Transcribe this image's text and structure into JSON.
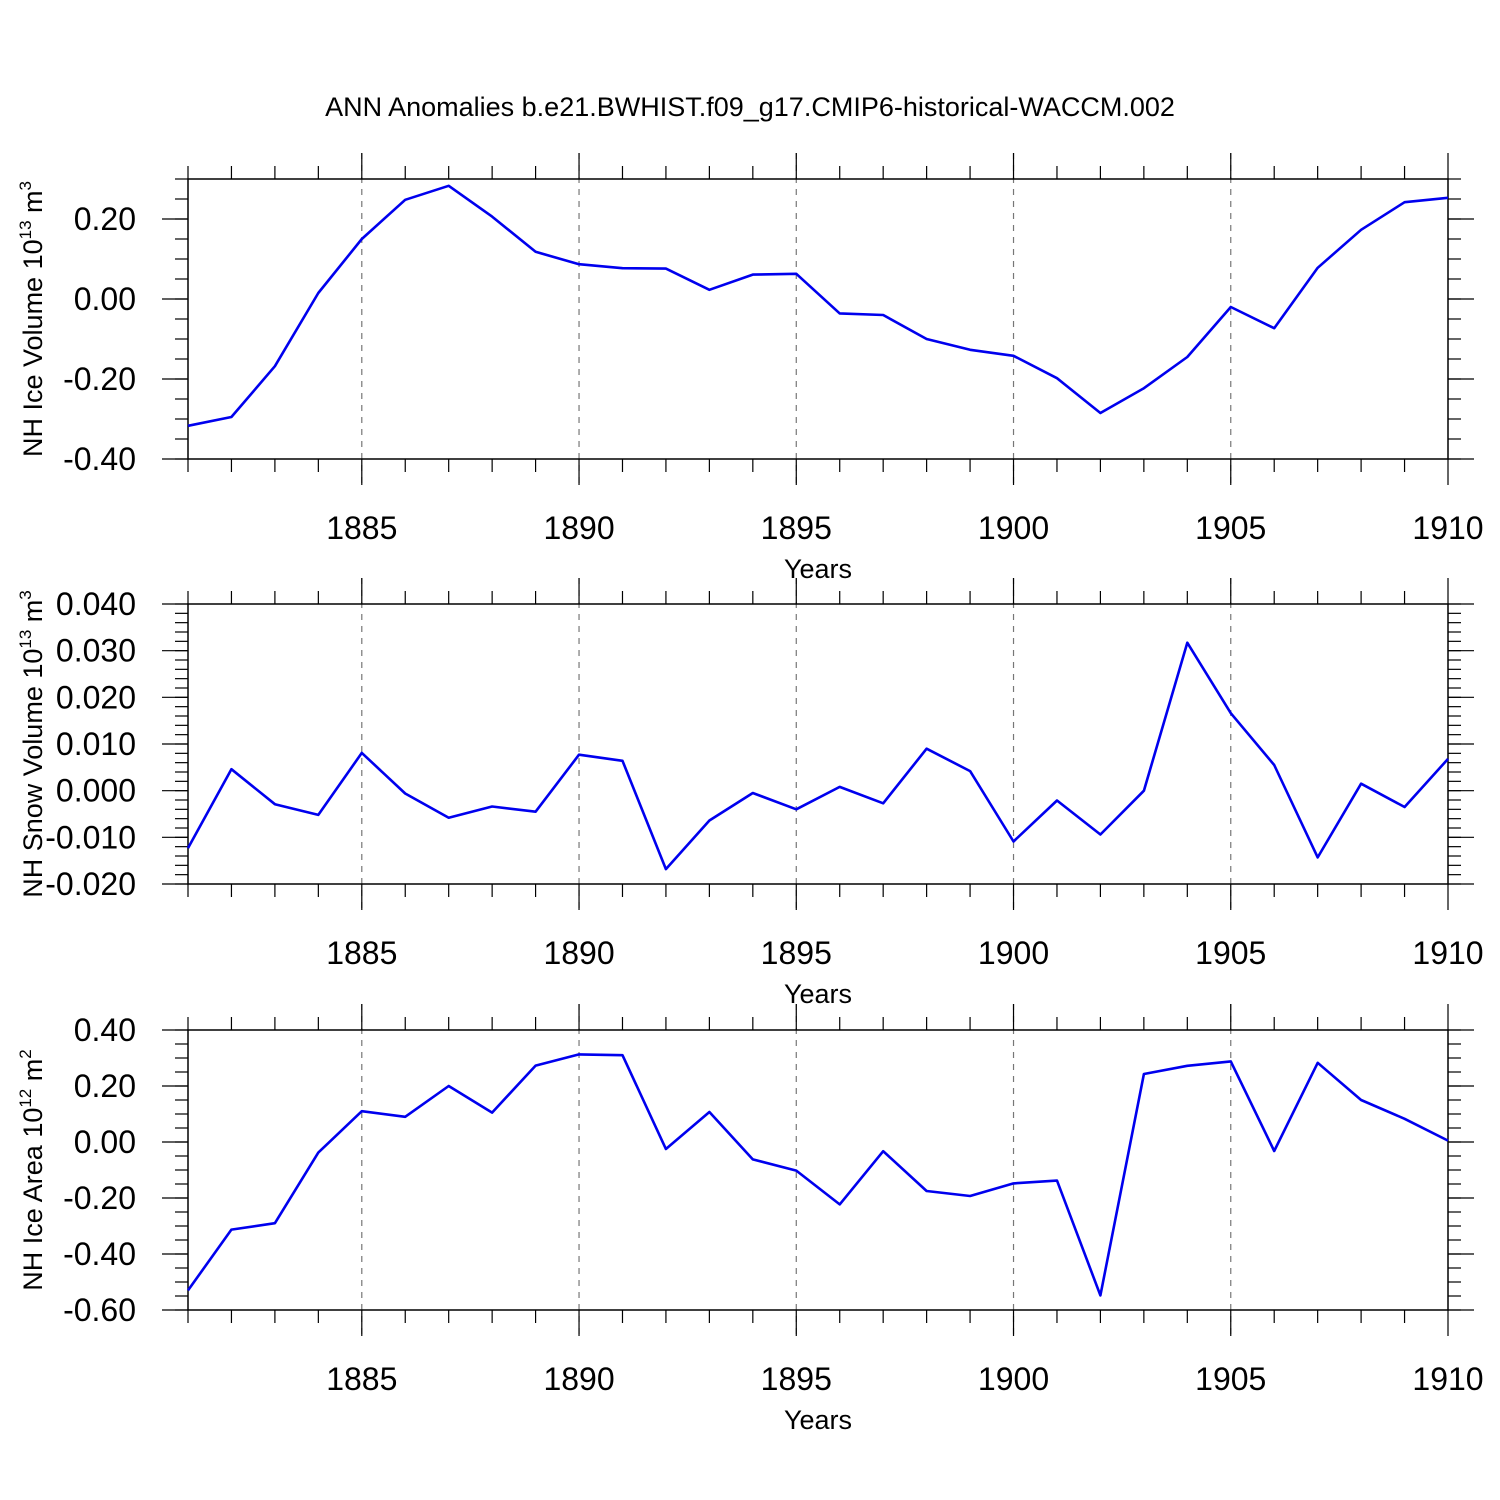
{
  "figure": {
    "title": "ANN Anomalies b.e21.BWHIST.f09_g17.CMIP6-historical-WACCM.002"
  },
  "chart_data": [
    {
      "type": "line",
      "ylabel": {
        "text": "NH Ice Volume 10",
        "exp": "13",
        "unit": " m",
        "unit_exp": "3"
      },
      "xlabel": "Years",
      "xlim": [
        1881,
        1910
      ],
      "ylim": [
        -0.4,
        0.3
      ],
      "xticks": [
        "1885",
        "1890",
        "1895",
        "1900",
        "1905",
        "1910"
      ],
      "yticks": [
        "0.20",
        "0.00",
        "-0.20",
        "-0.40"
      ],
      "ytick_values": [
        0.2,
        0.0,
        -0.2,
        -0.4
      ],
      "yminor_step": 0.05,
      "vgrid": [
        1885,
        1890,
        1895,
        1900,
        1905
      ],
      "series": [
        {
          "color": "#0000ee",
          "x": [
            1881,
            1882,
            1883,
            1884,
            1885,
            1886,
            1887,
            1888,
            1889,
            1890,
            1891,
            1892,
            1893,
            1894,
            1895,
            1896,
            1897,
            1898,
            1899,
            1900,
            1901,
            1902,
            1903,
            1904,
            1905,
            1906,
            1907,
            1908,
            1909,
            1910
          ],
          "y": [
            -0.317,
            -0.295,
            -0.168,
            0.015,
            0.15,
            0.248,
            0.283,
            0.206,
            0.118,
            0.087,
            0.077,
            0.076,
            0.023,
            0.061,
            0.063,
            -0.036,
            -0.04,
            -0.1,
            -0.127,
            -0.142,
            -0.198,
            -0.285,
            -0.223,
            -0.145,
            -0.02,
            -0.073,
            0.078,
            0.173,
            0.242,
            0.253
          ]
        }
      ]
    },
    {
      "type": "line",
      "ylabel": {
        "text": "NH Snow Volume 10",
        "exp": "13",
        "unit": " m",
        "unit_exp": "3"
      },
      "xlabel": "Years",
      "xlim": [
        1881,
        1910
      ],
      "ylim": [
        -0.02,
        0.04
      ],
      "xticks": [
        "1885",
        "1890",
        "1895",
        "1900",
        "1905",
        "1910"
      ],
      "yticks": [
        "0.040",
        "0.030",
        "0.020",
        "0.010",
        "0.000",
        "-0.010",
        "-0.020"
      ],
      "ytick_values": [
        0.04,
        0.03,
        0.02,
        0.01,
        0.0,
        -0.01,
        -0.02
      ],
      "yminor_step": 0.002,
      "vgrid": [
        1885,
        1890,
        1895,
        1900,
        1905
      ],
      "series": [
        {
          "color": "#0000ee",
          "x": [
            1881,
            1882,
            1883,
            1884,
            1885,
            1886,
            1887,
            1888,
            1889,
            1890,
            1891,
            1892,
            1893,
            1894,
            1895,
            1896,
            1897,
            1898,
            1899,
            1900,
            1901,
            1902,
            1903,
            1904,
            1905,
            1906,
            1907,
            1908,
            1909,
            1910
          ],
          "y": [
            -0.0123,
            0.0046,
            -0.0029,
            -0.0052,
            0.0081,
            -0.0006,
            -0.0058,
            -0.0034,
            -0.0045,
            0.0077,
            0.0064,
            -0.0168,
            -0.0064,
            -0.0005,
            -0.004,
            0.0008,
            -0.0027,
            0.009,
            0.0042,
            -0.0109,
            -0.0021,
            -0.0094,
            0.0,
            0.0317,
            0.0166,
            0.0055,
            -0.0143,
            0.0015,
            -0.0035,
            0.0068
          ]
        }
      ]
    },
    {
      "type": "line",
      "ylabel": {
        "text": "NH Ice Area 10",
        "exp": "12",
        "unit": " m",
        "unit_exp": "2"
      },
      "xlabel": "Years",
      "xlim": [
        1881,
        1910
      ],
      "ylim": [
        -0.6,
        0.4
      ],
      "xticks": [
        "1885",
        "1890",
        "1895",
        "1900",
        "1905",
        "1910"
      ],
      "yticks": [
        "0.40",
        "0.20",
        "0.00",
        "-0.20",
        "-0.40",
        "-0.60"
      ],
      "ytick_values": [
        0.4,
        0.2,
        0.0,
        -0.2,
        -0.4,
        -0.6
      ],
      "yminor_step": 0.05,
      "vgrid": [
        1885,
        1890,
        1895,
        1900,
        1905
      ],
      "series": [
        {
          "color": "#0000ee",
          "x": [
            1881,
            1882,
            1883,
            1884,
            1885,
            1886,
            1887,
            1888,
            1889,
            1890,
            1891,
            1892,
            1893,
            1894,
            1895,
            1896,
            1897,
            1898,
            1899,
            1900,
            1901,
            1902,
            1903,
            1904,
            1905,
            1906,
            1907,
            1908,
            1909,
            1910
          ],
          "y": [
            -0.53,
            -0.313,
            -0.29,
            -0.038,
            0.11,
            0.09,
            0.2,
            0.105,
            0.273,
            0.313,
            0.31,
            -0.025,
            0.107,
            -0.062,
            -0.102,
            -0.223,
            -0.033,
            -0.175,
            -0.193,
            -0.148,
            -0.138,
            -0.548,
            0.243,
            0.272,
            0.288,
            -0.032,
            0.283,
            0.15,
            0.083,
            0.005
          ]
        }
      ]
    }
  ]
}
